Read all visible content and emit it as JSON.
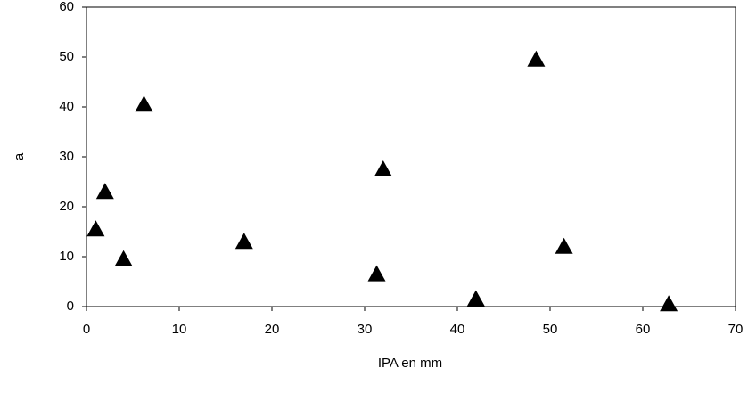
{
  "chart_data": {
    "type": "scatter",
    "xlabel": "IPA en mm",
    "ylabel": "a",
    "x": [
      1,
      2,
      4,
      6.2,
      17,
      31.3,
      32,
      42,
      48.5,
      51.5,
      62.8
    ],
    "values": [
      15.5,
      23,
      9.5,
      40.5,
      13,
      6.5,
      27.5,
      1.5,
      49.5,
      12,
      0.5
    ],
    "color": "#000000",
    "marker": "triangle",
    "xlim": [
      0,
      70
    ],
    "xticks": [
      0,
      10,
      20,
      30,
      40,
      50,
      60,
      70
    ],
    "ylim": [
      0,
      60
    ],
    "yticks": [
      0,
      10,
      20,
      30,
      40,
      50,
      60
    ],
    "grid": false
  }
}
